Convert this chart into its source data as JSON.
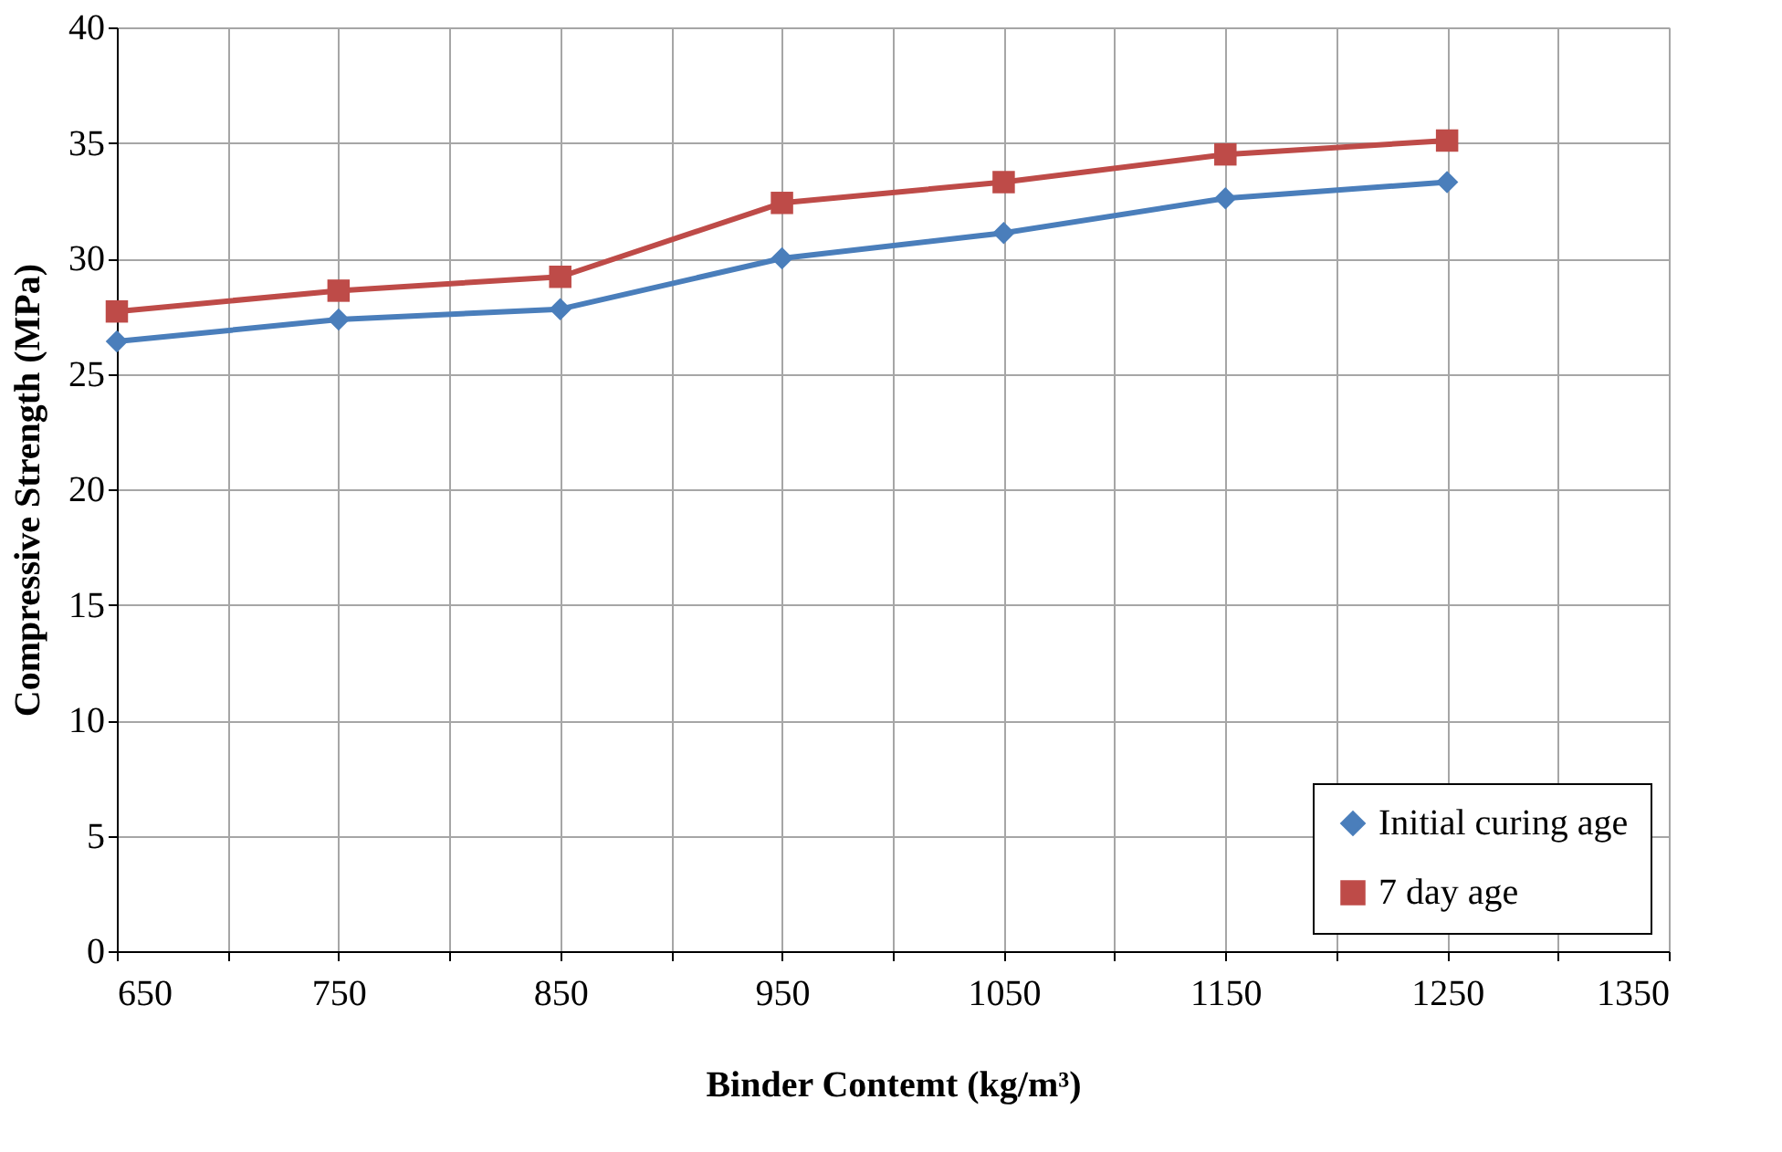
{
  "chart_data": {
    "type": "line",
    "xlabel": "Binder Contemt (kg/m³)",
    "ylabel": "Compressive Strength (MPa)",
    "x": [
      650,
      750,
      850,
      950,
      1050,
      1150,
      1250
    ],
    "series": [
      {
        "name": "Initial curing age",
        "color": "#4a7ebb",
        "marker": "diamond",
        "values": [
          26.4,
          27.35,
          27.8,
          30.0,
          31.1,
          32.6,
          33.3
        ]
      },
      {
        "name": "7 day age",
        "color": "#be4b48",
        "marker": "square",
        "values": [
          27.7,
          28.6,
          29.2,
          32.4,
          33.3,
          34.5,
          35.1
        ]
      }
    ],
    "xlim": [
      650,
      1350
    ],
    "xticks": [
      650,
      {
        "value": 700,
        "label": null
      },
      750,
      {
        "value": 800,
        "label": null
      },
      850,
      {
        "value": 900,
        "label": null
      },
      950,
      {
        "value": 1000,
        "label": null
      },
      1050,
      {
        "value": 1100,
        "label": null
      },
      1150,
      {
        "value": 1200,
        "label": null
      },
      1250,
      {
        "value": 1300,
        "label": null
      },
      1350
    ],
    "ylim": [
      0,
      40
    ],
    "yticks": [
      0,
      5,
      10,
      15,
      20,
      25,
      30,
      35,
      40
    ],
    "grid": true,
    "legend": "bottom right",
    "line_style": "solid"
  }
}
